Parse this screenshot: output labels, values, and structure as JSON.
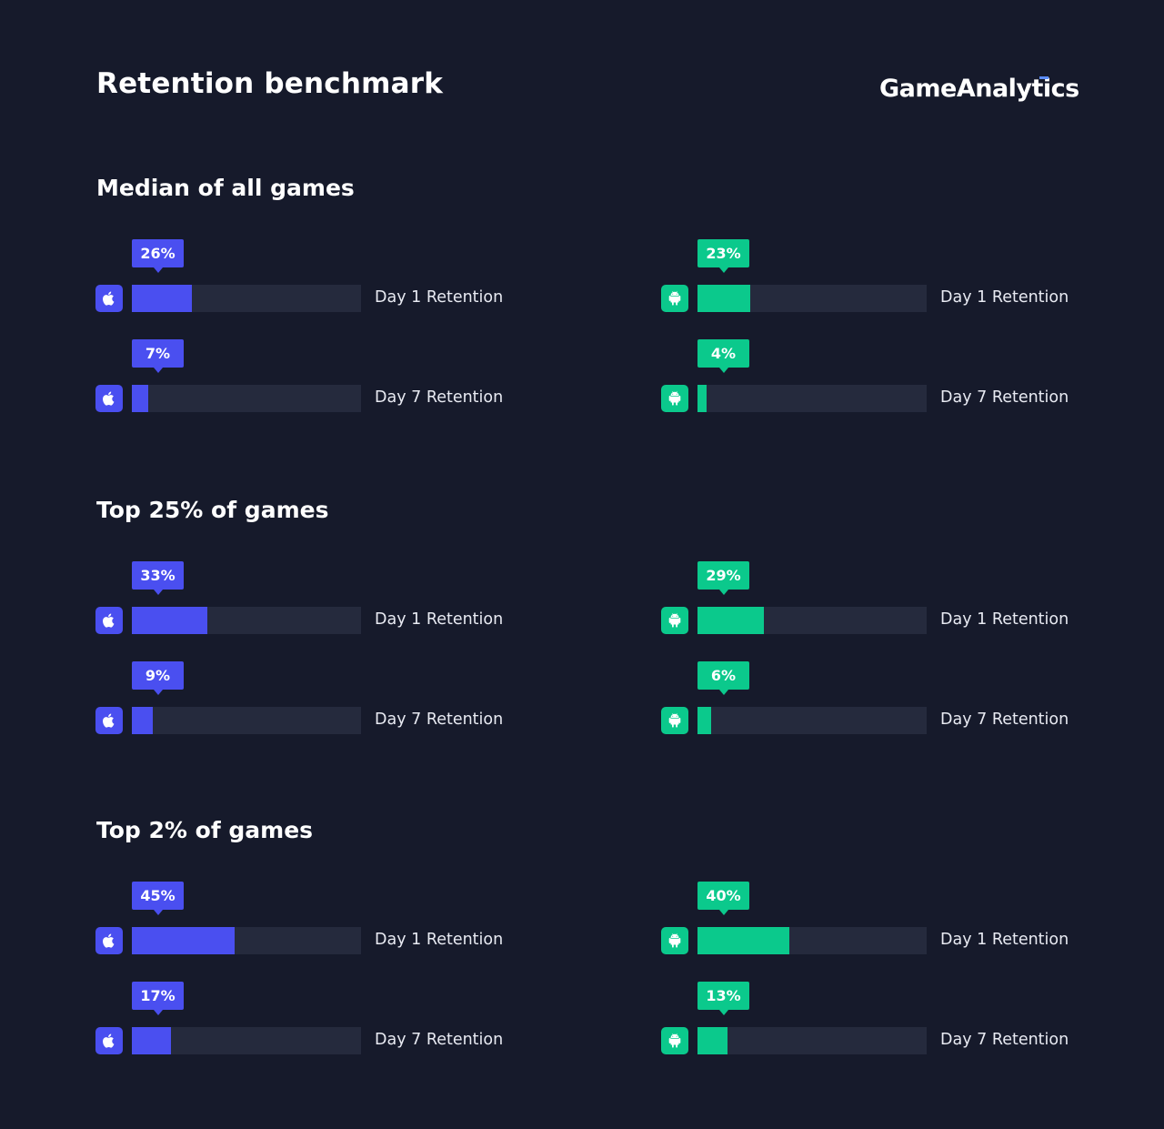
{
  "title": "Retention benchmark",
  "brand": "GameAnalytics",
  "colors": {
    "ios": "#4a4ff0",
    "android": "#0bc98c",
    "track": "#252a3d",
    "background": "#161a2b"
  },
  "icons": {
    "ios": "apple-icon",
    "android": "android-icon"
  },
  "chart_data": {
    "type": "bar",
    "orientation": "horizontal",
    "xlim": [
      0,
      100
    ],
    "unit": "%",
    "groups": [
      {
        "title": "Median of all games",
        "ios": [
          {
            "metric": "Day 1 Retention",
            "value": 26,
            "label": "26%"
          },
          {
            "metric": "Day 7 Retention",
            "value": 7,
            "label": "7%"
          }
        ],
        "android": [
          {
            "metric": "Day 1 Retention",
            "value": 23,
            "label": "23%"
          },
          {
            "metric": "Day 7 Retention",
            "value": 4,
            "label": "4%"
          }
        ]
      },
      {
        "title": "Top 25% of games",
        "ios": [
          {
            "metric": "Day 1 Retention",
            "value": 33,
            "label": "33%"
          },
          {
            "metric": "Day 7 Retention",
            "value": 9,
            "label": "9%"
          }
        ],
        "android": [
          {
            "metric": "Day 1 Retention",
            "value": 29,
            "label": "29%"
          },
          {
            "metric": "Day 7 Retention",
            "value": 6,
            "label": "6%"
          }
        ]
      },
      {
        "title": "Top 2% of games",
        "ios": [
          {
            "metric": "Day 1 Retention",
            "value": 45,
            "label": "45%"
          },
          {
            "metric": "Day 7 Retention",
            "value": 17,
            "label": "17%"
          }
        ],
        "android": [
          {
            "metric": "Day 1 Retention",
            "value": 40,
            "label": "40%"
          },
          {
            "metric": "Day 7 Retention",
            "value": 13,
            "label": "13%"
          }
        ]
      }
    ]
  }
}
